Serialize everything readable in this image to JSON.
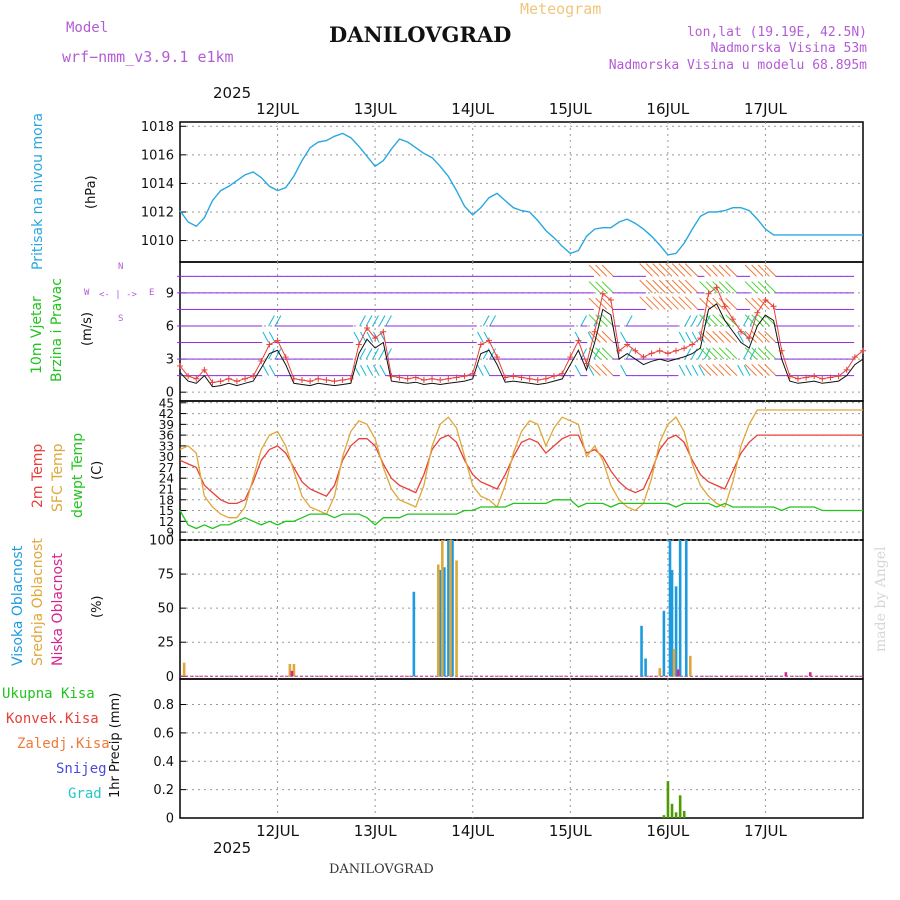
{
  "header": {
    "model_label": "Model",
    "model_name": "wrf−nmm_v3.9.1 e1km",
    "title": "DANILOVGRAD",
    "subtitle": "Meteogram",
    "coords": "lon,lat (19.19E, 42.5N)",
    "elevation": "Nadmorska Visina 53m",
    "model_elevation": "Nadmorska Visina u modelu 68.895m",
    "year": "2025",
    "footer_title": "DANILOVGRAD",
    "watermark": "made by Angel"
  },
  "colors": {
    "pressure": "#2aa7e0",
    "temp2m": "#e8403a",
    "sfc": "#e0a73a",
    "dewpt": "#22c41e",
    "high_cloud": "#1d9be0",
    "mid_cloud": "#e0a73a",
    "low_cloud": "#d6248e",
    "wind_purple": "#8a2be2",
    "wind_cyan": "#17b7d8",
    "wind_green": "#4ad22f",
    "wind_orange": "#f07a3a",
    "precip": "#4e9a06"
  },
  "panel_labels": {
    "pressure": [
      "Pritisak na nivou mora",
      "(hPa)"
    ],
    "wind": [
      "10m Vjetar",
      "Brzina i Pravac",
      "(m/s)"
    ],
    "compass": [
      "N",
      "W",
      "E",
      "S"
    ],
    "temp": [
      "2m Temp",
      "SFC Temp",
      "dewpt Temp",
      "(C)"
    ],
    "cloud": [
      "Visoka Oblacnost",
      "Srednja Oblacnost",
      "Niska Oblacnost",
      "(%)"
    ],
    "precip": [
      "Ukupna Kisa",
      "Konvek.Kisa",
      "Zaledj.Kisa",
      "Snijeg",
      "Grad",
      "1hr Precip (mm)"
    ]
  },
  "chart_data": [
    {
      "type": "line",
      "panel": "pressure",
      "x_ticks": [
        "12JUL",
        "13JUL",
        "14JUL",
        "15JUL",
        "16JUL",
        "17JUL"
      ],
      "x_unit": "hours from 00Z 11JUL",
      "xlim": [
        12,
        180
      ],
      "y_ticks": [
        "1010",
        "1012",
        "1014",
        "1016",
        "1018"
      ],
      "ylim": [
        1008.5,
        1018.3
      ],
      "series": [
        {
          "x": [
            12,
            14,
            16,
            18,
            20,
            22,
            24,
            26,
            28,
            30,
            32,
            34,
            36,
            38,
            40,
            42,
            44,
            46,
            48,
            50,
            52,
            54,
            56,
            58,
            60,
            62,
            64,
            66,
            68,
            70,
            72,
            74,
            76,
            78,
            80,
            82,
            84,
            86,
            88,
            90,
            92,
            94,
            96,
            98,
            100,
            102,
            104,
            106,
            108,
            110,
            112,
            114,
            116,
            118,
            120,
            122,
            124,
            126,
            128,
            130,
            132,
            134,
            136,
            138,
            140,
            142,
            144,
            146,
            148,
            150,
            152,
            154,
            156,
            158,
            160,
            162,
            164,
            166,
            168,
            170,
            172,
            174,
            176,
            178,
            180
          ],
          "y": [
            1012.1,
            1011.3,
            1011.0,
            1011.6,
            1012.8,
            1013.5,
            1013.8,
            1014.2,
            1014.6,
            1014.8,
            1014.4,
            1013.8,
            1013.5,
            1013.7,
            1014.5,
            1015.6,
            1016.5,
            1016.9,
            1017.0,
            1017.3,
            1017.5,
            1017.2,
            1016.6,
            1015.9,
            1015.2,
            1015.6,
            1016.4,
            1017.1,
            1016.9,
            1016.5,
            1016.1,
            1015.8,
            1015.2,
            1014.5,
            1013.5,
            1012.4,
            1011.8,
            1012.3,
            1013.0,
            1013.3,
            1012.8,
            1012.3,
            1012.1,
            1012.0,
            1011.4,
            1010.7,
            1010.2,
            1009.6,
            1009.1,
            1009.3,
            1010.3,
            1010.8,
            1010.9,
            1010.9,
            1011.3,
            1011.5,
            1011.2,
            1010.8,
            1010.3,
            1009.7,
            1009.0,
            1009.1,
            1009.8,
            1010.8,
            1011.7,
            1012.0,
            1012.0,
            1012.1,
            1012.3,
            1012.3,
            1012.1,
            1011.5,
            1010.8,
            1010.4,
            1010.4,
            1010.4,
            1010.4,
            1010.4,
            1010.4,
            1010.4,
            1010.4,
            1010.4,
            1010.4,
            1010.4,
            1010.4
          ]
        }
      ]
    },
    {
      "type": "line",
      "panel": "wind",
      "x_unit": "hours from 00Z 11JUL",
      "xlim": [
        12,
        180
      ],
      "y_ticks": [
        "0",
        "3",
        "6",
        "9"
      ],
      "ylim": [
        -0.8,
        11.8
      ],
      "series": [
        {
          "x": [
            12,
            14,
            16,
            18,
            20,
            22,
            24,
            26,
            28,
            30,
            32,
            34,
            36,
            38,
            40,
            42,
            44,
            46,
            48,
            50,
            52,
            54,
            56,
            58,
            60,
            62,
            64,
            66,
            68,
            70,
            72,
            74,
            76,
            78,
            80,
            82,
            84,
            86,
            88,
            90,
            92,
            94,
            96,
            98,
            100,
            102,
            104,
            106,
            108,
            110,
            112,
            114,
            116,
            118,
            120,
            122,
            124,
            126,
            128,
            130,
            132,
            134,
            136,
            138,
            140,
            142,
            144,
            146,
            148,
            150,
            152,
            154,
            156,
            158,
            160,
            162,
            164,
            166,
            168,
            170,
            172,
            174,
            176,
            178,
            180
          ],
          "y": [
            1.8,
            1.0,
            0.8,
            1.5,
            0.5,
            0.6,
            0.8,
            0.6,
            0.8,
            1.0,
            2.2,
            3.5,
            3.8,
            2.5,
            0.8,
            0.7,
            0.6,
            0.8,
            0.7,
            0.6,
            0.7,
            0.8,
            3.5,
            4.8,
            4.0,
            4.5,
            1.0,
            0.9,
            0.8,
            0.9,
            0.7,
            0.8,
            0.7,
            0.8,
            0.9,
            1.0,
            1.2,
            3.5,
            3.8,
            2.5,
            0.9,
            1.0,
            0.9,
            0.8,
            0.7,
            0.8,
            1.0,
            1.2,
            2.5,
            3.8,
            2.0,
            4.5,
            7.5,
            7.0,
            3.0,
            3.5,
            3.0,
            2.5,
            2.8,
            3.0,
            2.8,
            3.0,
            3.2,
            3.5,
            4.0,
            7.5,
            8.0,
            6.5,
            5.5,
            4.5,
            4.0,
            6.0,
            7.0,
            6.5,
            3.0,
            1.0,
            0.8,
            0.9,
            1.0,
            0.8,
            0.9,
            1.0,
            1.5,
            2.5,
            3.0
          ]
        }
      ]
    },
    {
      "type": "line",
      "panel": "temperature",
      "x_unit": "hours from 00Z 11JUL",
      "xlim": [
        12,
        180
      ],
      "y_ticks": [
        "9",
        "12",
        "15",
        "18",
        "21",
        "24",
        "27",
        "30",
        "33",
        "36",
        "39",
        "42",
        "45"
      ],
      "ylim": [
        6.8,
        45.5
      ],
      "series": [
        {
          "name": "2m Temp",
          "x": [
            12,
            14,
            16,
            18,
            20,
            22,
            24,
            26,
            28,
            30,
            32,
            34,
            36,
            38,
            40,
            42,
            44,
            46,
            48,
            50,
            52,
            54,
            56,
            58,
            60,
            62,
            64,
            66,
            68,
            70,
            72,
            74,
            76,
            78,
            80,
            82,
            84,
            86,
            88,
            90,
            92,
            94,
            96,
            98,
            100,
            102,
            104,
            106,
            108,
            110,
            112,
            114,
            116,
            118,
            120,
            122,
            124,
            126,
            128,
            130,
            132,
            134,
            136,
            138,
            140,
            142,
            144,
            146,
            148,
            150,
            152,
            154,
            156,
            158,
            160,
            162,
            164,
            166,
            168,
            170,
            172,
            174,
            176,
            178,
            180
          ],
          "y": [
            29,
            28,
            27,
            22,
            20,
            18,
            17,
            17,
            18,
            23,
            29,
            32,
            33,
            31,
            27,
            23,
            21,
            20,
            19,
            22,
            29,
            33,
            35,
            35,
            33,
            28,
            24,
            22,
            21,
            20,
            25,
            32,
            35,
            36,
            34,
            29,
            25,
            23,
            22,
            21,
            25,
            30,
            34,
            35,
            34,
            31,
            33,
            35,
            36,
            36,
            31,
            32,
            30,
            26,
            23,
            21,
            20,
            21,
            26,
            32,
            35,
            36,
            34,
            29,
            25,
            23,
            22,
            21,
            26,
            31,
            34,
            36,
            36,
            36,
            36,
            36,
            36,
            36,
            36,
            36,
            36,
            36,
            36,
            36,
            36
          ]
        },
        {
          "name": "SFC Temp",
          "x": [
            12,
            14,
            16,
            18,
            20,
            22,
            24,
            26,
            28,
            30,
            32,
            34,
            36,
            38,
            40,
            42,
            44,
            46,
            48,
            50,
            52,
            54,
            56,
            58,
            60,
            62,
            64,
            66,
            68,
            70,
            72,
            74,
            76,
            78,
            80,
            82,
            84,
            86,
            88,
            90,
            92,
            94,
            96,
            98,
            100,
            102,
            104,
            106,
            108,
            110,
            112,
            114,
            116,
            118,
            120,
            122,
            124,
            126,
            128,
            130,
            132,
            134,
            136,
            138,
            140,
            142,
            144,
            146,
            148,
            150,
            152,
            154,
            156,
            158,
            160,
            162,
            164,
            166,
            168,
            170,
            172,
            174,
            176,
            178,
            180
          ],
          "y": [
            32,
            33,
            31,
            19,
            16,
            14,
            13,
            13,
            16,
            24,
            32,
            36,
            37,
            33,
            26,
            19,
            16,
            15,
            14,
            19,
            30,
            37,
            40,
            39,
            35,
            27,
            21,
            18,
            17,
            16,
            22,
            33,
            39,
            41,
            38,
            30,
            22,
            19,
            18,
            16,
            22,
            31,
            37,
            40,
            39,
            33,
            38,
            41,
            40,
            39,
            30,
            33,
            29,
            22,
            18,
            16,
            15,
            17,
            24,
            34,
            39,
            41,
            37,
            28,
            22,
            19,
            17,
            16,
            23,
            33,
            39,
            43,
            43,
            43,
            43,
            43,
            43,
            43,
            43,
            43,
            43,
            43,
            43,
            43,
            43
          ]
        },
        {
          "name": "dewpt Temp",
          "x": [
            12,
            14,
            16,
            18,
            20,
            22,
            24,
            26,
            28,
            30,
            32,
            34,
            36,
            38,
            40,
            42,
            44,
            46,
            48,
            50,
            52,
            54,
            56,
            58,
            60,
            62,
            64,
            66,
            68,
            70,
            72,
            74,
            76,
            78,
            80,
            82,
            84,
            86,
            88,
            90,
            92,
            94,
            96,
            98,
            100,
            102,
            104,
            106,
            108,
            110,
            112,
            114,
            116,
            118,
            120,
            122,
            124,
            126,
            128,
            130,
            132,
            134,
            136,
            138,
            140,
            142,
            144,
            146,
            148,
            150,
            152,
            154,
            156,
            158,
            160,
            162,
            164,
            166,
            168,
            170,
            172,
            174,
            176,
            178,
            180
          ],
          "y": [
            15,
            11,
            10,
            11,
            10,
            11,
            11,
            12,
            13,
            12,
            11,
            12,
            11,
            12,
            12,
            13,
            14,
            14,
            14,
            13,
            14,
            14,
            14,
            13,
            11,
            13,
            13,
            13,
            14,
            14,
            14,
            14,
            14,
            14,
            14,
            15,
            15,
            16,
            16,
            16,
            16,
            17,
            17,
            17,
            17,
            17,
            18,
            18,
            18,
            16,
            17,
            17,
            17,
            16,
            17,
            17,
            17,
            17,
            17,
            17,
            17,
            16,
            17,
            17,
            17,
            17,
            16,
            17,
            16,
            16,
            16,
            16,
            16,
            16,
            15,
            16,
            16,
            16,
            16,
            15,
            15,
            15,
            15,
            15,
            15
          ]
        }
      ]
    },
    {
      "type": "bar",
      "panel": "cloud",
      "x_unit": "hours from 00Z 11JUL",
      "xlim": [
        12,
        180
      ],
      "y_ticks": [
        "0",
        "25",
        "50",
        "75",
        "100"
      ],
      "ylim": [
        -2,
        100
      ],
      "series": [
        {
          "name": "Visoka Oblacnost",
          "x": [
            69.5,
            76,
            77,
            78,
            79,
            125.5,
            126.5,
            131,
            132.5,
            133,
            134,
            135,
            136.5
          ],
          "y": [
            62,
            78,
            80,
            100,
            100,
            37,
            13,
            48,
            100,
            78,
            66,
            100,
            100
          ]
        },
        {
          "name": "Srednja Oblacnost",
          "x": [
            13,
            39,
            40,
            75.5,
            76.5,
            78.5,
            80,
            130,
            133.5,
            137.5
          ],
          "y": [
            10,
            9,
            9,
            82,
            100,
            100,
            85,
            6,
            20,
            15
          ]
        },
        {
          "name": "Niska Oblacnost",
          "x": [
            39.5,
            134.5,
            161,
            167
          ],
          "y": [
            4,
            5,
            3,
            3
          ]
        }
      ]
    },
    {
      "type": "bar",
      "panel": "precip",
      "x_unit": "hours from 00Z 11JUL",
      "xlim": [
        12,
        180
      ],
      "y_ticks": [
        "0",
        "0.2",
        "0.4",
        "0.6",
        "0.8"
      ],
      "ylim": [
        0,
        0.98
      ],
      "series": [
        {
          "name": "Ukupna Kisa",
          "x": [
            131,
            132,
            133,
            134,
            135,
            136
          ],
          "y": [
            0.02,
            0.26,
            0.1,
            0.04,
            0.16,
            0.05
          ]
        }
      ]
    }
  ]
}
